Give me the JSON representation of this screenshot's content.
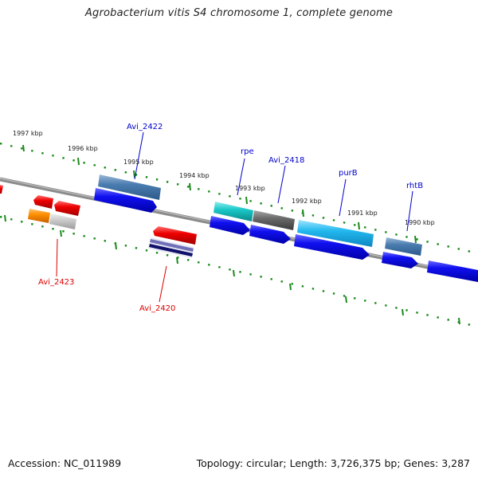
{
  "title": "Agrobacterium vitis S4 chromosome 1, complete genome",
  "footer": {
    "accession": "Accession: NC_011989",
    "topology": "Topology: circular; Length: 3,726,375 bp; Genes: 3,287"
  },
  "kbp_labels": [
    "1997 kbp",
    "1996 kbp",
    "1995 kbp",
    "1994 kbp",
    "1993 kbp",
    "1992 kbp",
    "1991 kbp",
    "1990 kbp"
  ],
  "gene_labels": [
    "Avi_2422",
    "rpe",
    "Avi_2418",
    "purB",
    "rhtB",
    "Avi_2423",
    "Avi_2420"
  ],
  "colors": {
    "backbone": "#777777",
    "tick": "#1a8a1a",
    "label_blue": "#0000cc",
    "label_red": "#dd0000",
    "cds_blue": "#0a0ae6",
    "cds_red": "#ee0000"
  }
}
